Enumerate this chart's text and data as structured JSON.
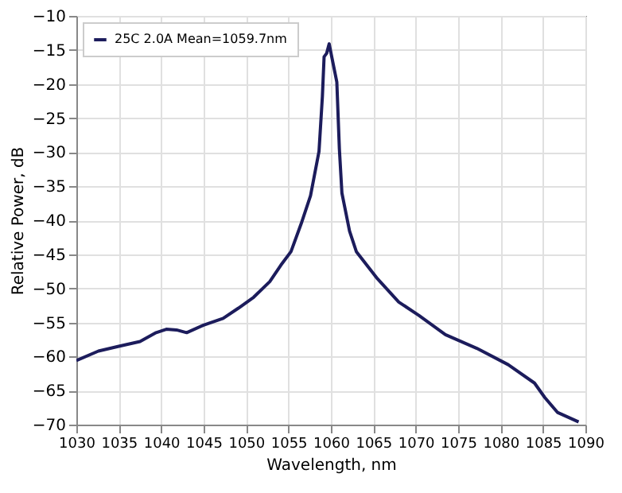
{
  "chart_data": {
    "type": "line",
    "xlabel": "Wavelength, nm",
    "ylabel": "Relative Power, dB",
    "xlim": [
      1030,
      1090
    ],
    "xticks": [
      1030,
      1035,
      1040,
      1045,
      1050,
      1055,
      1060,
      1065,
      1070,
      1075,
      1080,
      1085,
      1090
    ],
    "ylim": [
      -70,
      -10
    ],
    "yticks": [
      -70,
      -65,
      -60,
      -55,
      -50,
      -45,
      -40,
      -35,
      -30,
      -25,
      -20,
      -15,
      -10
    ],
    "grid": true,
    "legend": "top left",
    "marker": "none",
    "line_style": "solid",
    "series": [
      {
        "name": "25C 2.0A Mean=1059.7nm",
        "color": "#1c1c5c",
        "x": [
          1030,
          1032.6,
          1035,
          1037.5,
          1039.4,
          1040.6,
          1041.8,
          1043,
          1045,
          1047.3,
          1049.1,
          1050.9,
          1052.8,
          1054.1,
          1055.3,
          1056.5,
          1057.6,
          1058.6,
          1059.0,
          1059.2,
          1059.5,
          1059.8,
          1060.1,
          1060.7,
          1061.0,
          1061.3,
          1062.2,
          1063,
          1065.5,
          1068,
          1070.4,
          1073.5,
          1077.2,
          1080.9,
          1084,
          1085.2,
          1086.7,
          1089.2
        ],
        "values": [
          -60.6,
          -59.2,
          -58.5,
          -57.8,
          -56.5,
          -56,
          -56.1,
          -56.5,
          -55.4,
          -54.4,
          -52.9,
          -51.3,
          -49,
          -46.6,
          -44.6,
          -40.5,
          -36.4,
          -29.9,
          -21.8,
          -16,
          -15.5,
          -14.1,
          -16,
          -19.7,
          -29.5,
          -36,
          -41.6,
          -44.6,
          -48.6,
          -52,
          -54,
          -56.8,
          -58.8,
          -61.2,
          -63.9,
          -66,
          -68.2,
          -69.6
        ]
      }
    ]
  }
}
